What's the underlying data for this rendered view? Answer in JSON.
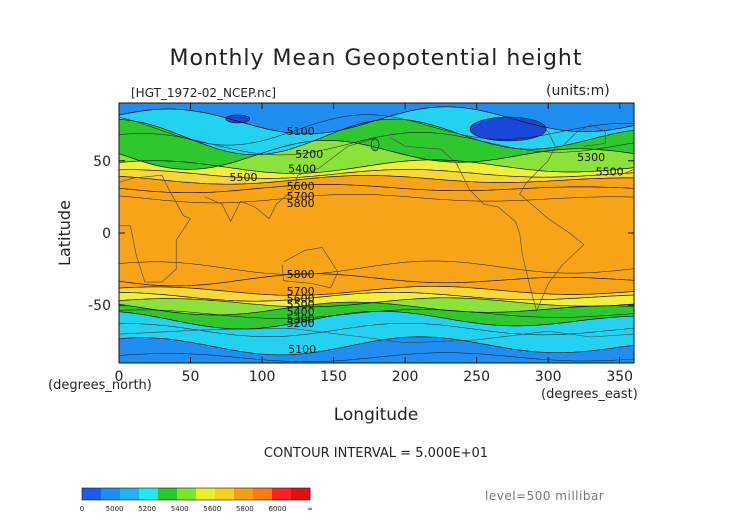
{
  "page": {
    "title": "Monthly Mean Geopotential height",
    "filename": "[HGT_1972-02_NCEP.nc]",
    "units": "(units:m)",
    "contour_interval": "CONTOUR INTERVAL = 5.000E+01",
    "level": "level=500 millibar"
  },
  "chart_data": {
    "type": "contour",
    "title": "Monthly Mean Geopotential height",
    "xlabel": "Longitude",
    "ylabel": "Latitude",
    "x_unit_label": "(degrees_east)",
    "y_unit_label": "(degrees_north)",
    "xlim": [
      0,
      360
    ],
    "ylim": [
      -90,
      90
    ],
    "xticks": [
      0,
      50,
      100,
      150,
      200,
      250,
      300,
      350
    ],
    "yticks": [
      50,
      0,
      -50
    ],
    "contour_interval": 50,
    "contour_labels": [
      {
        "value": "5100",
        "lon": 127,
        "lat": 70
      },
      {
        "value": "5200",
        "lon": 133,
        "lat": 54
      },
      {
        "value": "5400",
        "lon": 128,
        "lat": 44
      },
      {
        "value": "5500",
        "lon": 87,
        "lat": 38
      },
      {
        "value": "5600",
        "lon": 127,
        "lat": 32
      },
      {
        "value": "5700",
        "lon": 127,
        "lat": 25
      },
      {
        "value": "5800",
        "lon": 127,
        "lat": 20
      },
      {
        "value": "5800",
        "lon": 127,
        "lat": -29
      },
      {
        "value": "5700",
        "lon": 127,
        "lat": -41
      },
      {
        "value": "5600",
        "lon": 127,
        "lat": -46
      },
      {
        "value": "5500",
        "lon": 127,
        "lat": -50
      },
      {
        "value": "5400",
        "lon": 127,
        "lat": -55
      },
      {
        "value": "5300",
        "lon": 127,
        "lat": -60
      },
      {
        "value": "5200",
        "lon": 127,
        "lat": -63
      },
      {
        "value": "5100",
        "lon": 128,
        "lat": -81
      },
      {
        "value": "5300",
        "lon": 330,
        "lat": 52
      },
      {
        "value": "5500",
        "lon": 343,
        "lat": 42
      }
    ],
    "colorbar": {
      "boundaries": [
        "0",
        "5000",
        "5200",
        "5400",
        "5600",
        "5800",
        "6000",
        "∞"
      ],
      "colors": [
        "#1a5cf0",
        "#1e8ff2",
        "#22b4ee",
        "#22e8f2",
        "#2ac82a",
        "#7ae82a",
        "#e8f02a",
        "#f8d020",
        "#f0a010",
        "#f87a18",
        "#ff2020",
        "#e01010"
      ]
    },
    "bands": [
      {
        "level": "lt5000",
        "color": "#1948d8"
      },
      {
        "level": "5000-5200",
        "color": "#1f8ef0"
      },
      {
        "level": "5200-5400",
        "color": "#22d2f0"
      },
      {
        "level": "5400-5500",
        "color": "#2ec82e"
      },
      {
        "level": "5500-5600",
        "color": "#8ae23a"
      },
      {
        "level": "5600-5700",
        "color": "#f0f03a"
      },
      {
        "level": "5700-5800",
        "color": "#f8d838"
      },
      {
        "level": "gt5800",
        "color": "#f8a418"
      }
    ]
  }
}
